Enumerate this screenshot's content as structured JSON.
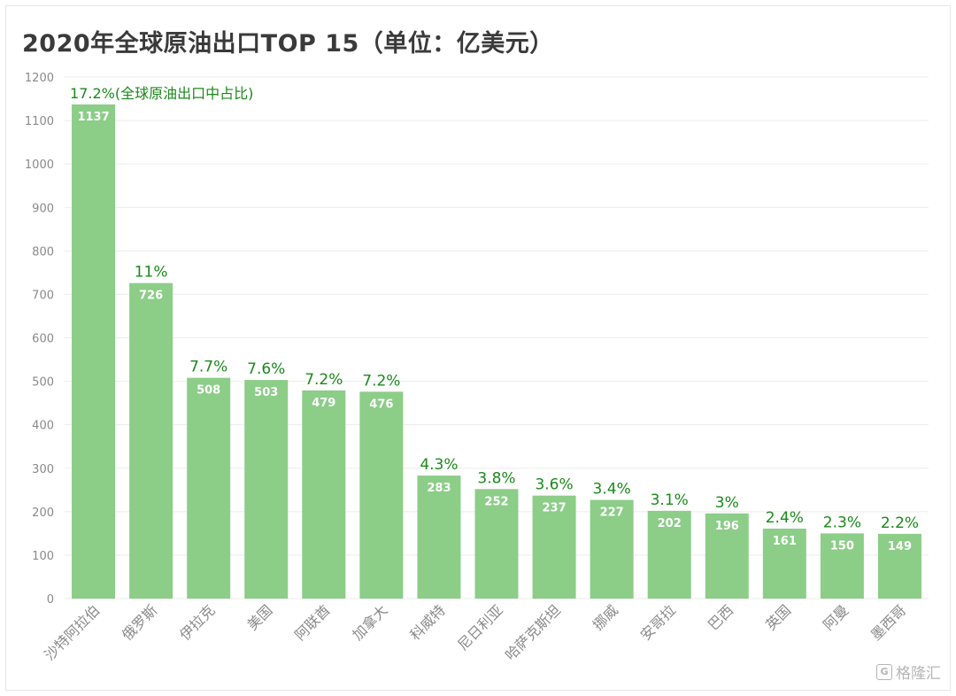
{
  "chart_data": {
    "type": "bar",
    "title": "2020年全球原油出口TOP 15（单位：亿美元）",
    "categories": [
      "沙特阿拉伯",
      "俄罗斯",
      "伊拉克",
      "美国",
      "阿联酋",
      "加拿大",
      "科威特",
      "尼日利亚",
      "哈萨克斯坦",
      "挪威",
      "安哥拉",
      "巴西",
      "英国",
      "阿曼",
      "墨西哥"
    ],
    "values": [
      1137,
      726,
      508,
      503,
      479,
      476,
      283,
      252,
      237,
      227,
      202,
      196,
      161,
      150,
      149
    ],
    "shares": [
      "17.2%(全球原油出口中占比)",
      "11%",
      "7.7%",
      "7.6%",
      "7.2%",
      "7.2%",
      "4.3%",
      "3.8%",
      "3.6%",
      "3.4%",
      "3.1%",
      "3%",
      "2.4%",
      "2.3%",
      "2.2%"
    ],
    "ylim": [
      0,
      1200
    ],
    "yticks": [
      0,
      100,
      200,
      300,
      400,
      500,
      600,
      700,
      800,
      900,
      1000,
      1100,
      1200
    ],
    "grid": true,
    "colors": {
      "bar": "#8ccd88",
      "share_label": "#1a8a1a",
      "value_label": "#ffffff",
      "tick": "#8a8a8a",
      "grid": "#ebebeb"
    }
  },
  "watermark": {
    "text": "格隆汇",
    "logo": "G"
  }
}
